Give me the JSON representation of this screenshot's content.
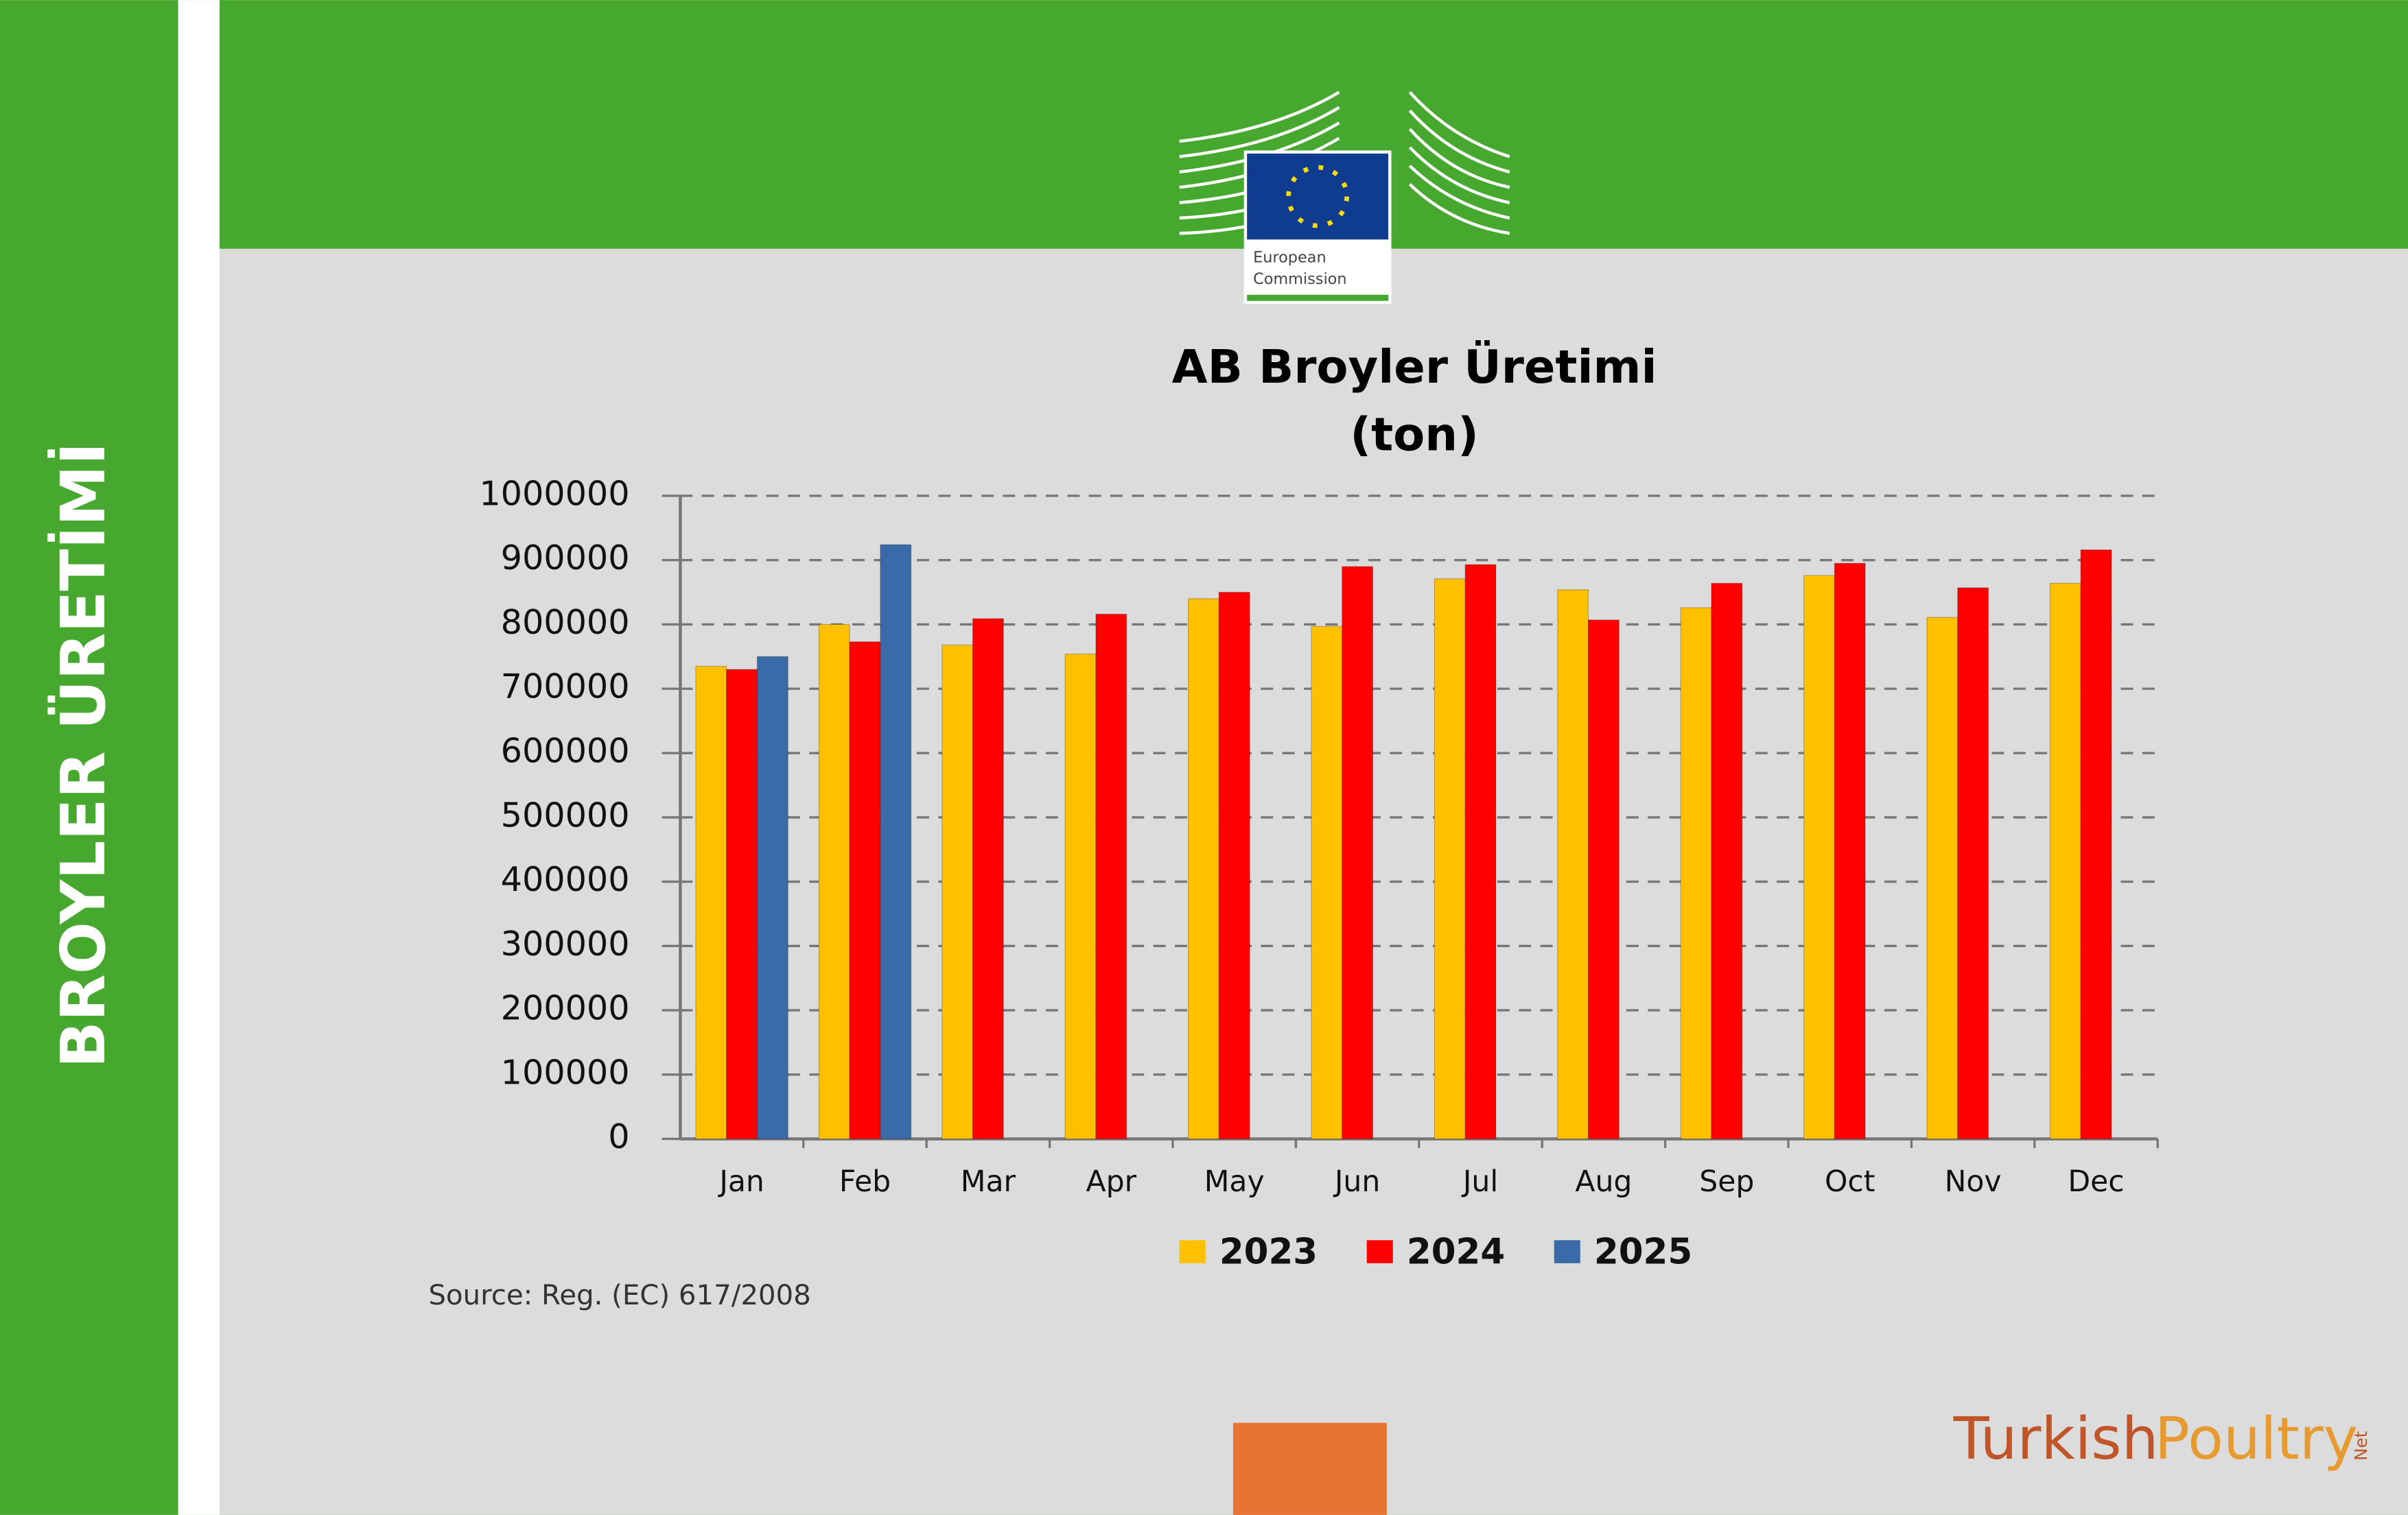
{
  "sidebar_title": "BROYLER ÜRETİMİ",
  "logo": {
    "line1": "European",
    "line2": "Commission"
  },
  "source": "Source: Reg. (EC) 617/2008",
  "brand": {
    "turkish": "Turkish",
    "poultry": "Poultry",
    "net": "Net"
  },
  "chart_data": {
    "type": "bar",
    "title": "AB Broyler Üretimi",
    "subtitle": "(ton)",
    "categories": [
      "Jan",
      "Feb",
      "Mar",
      "Apr",
      "May",
      "Jun",
      "Jul",
      "Aug",
      "Sep",
      "Oct",
      "Nov",
      "Dec"
    ],
    "series": [
      {
        "name": "2023",
        "color": "#ffc000",
        "values": [
          735000,
          800000,
          768000,
          754000,
          840000,
          797000,
          871000,
          854000,
          826000,
          876000,
          811000,
          864000
        ]
      },
      {
        "name": "2024",
        "color": "#ff0000",
        "values": [
          730000,
          773000,
          809000,
          816000,
          850000,
          890000,
          893000,
          807000,
          864000,
          895000,
          857000,
          916000
        ]
      },
      {
        "name": "2025",
        "color": "#3a6aa8",
        "values": [
          750000,
          924000,
          null,
          null,
          null,
          null,
          null,
          null,
          null,
          null,
          null,
          null
        ]
      }
    ],
    "ylim": [
      0,
      1000000
    ],
    "yticks": [
      0,
      100000,
      200000,
      300000,
      400000,
      500000,
      600000,
      700000,
      800000,
      900000,
      1000000
    ],
    "grid": true,
    "legend": "bottom"
  }
}
